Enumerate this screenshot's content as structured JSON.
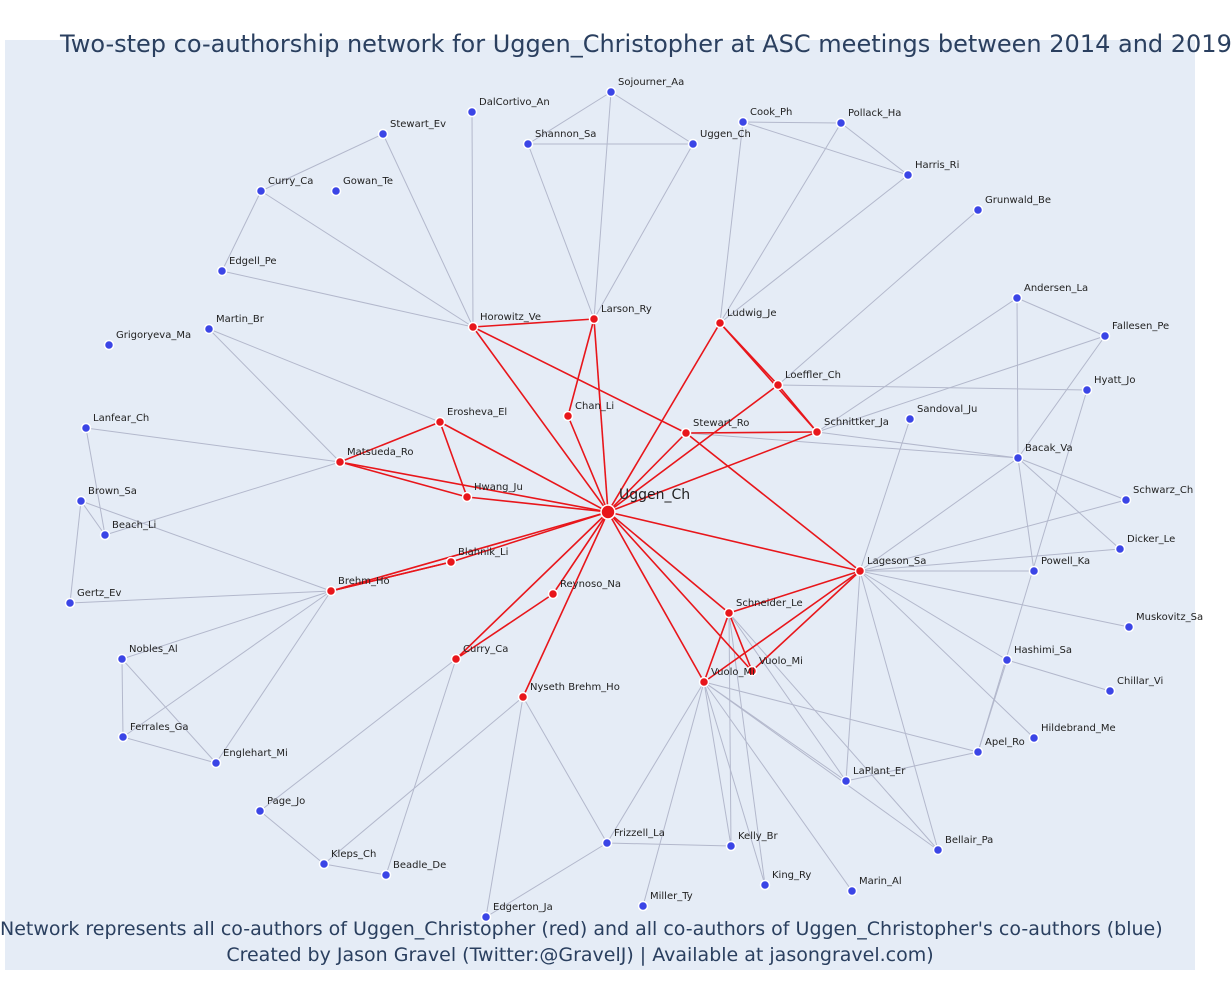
{
  "title": "Two-step co-authorship network for Uggen_Christopher at ASC meetings between 2014 and 2019",
  "footer": {
    "line1": "Network represents all co-authors of Uggen_Christopher (red) and all co-authors of Uggen_Christopher's co-authors (blue)",
    "line2": "Created by Jason Gravel (Twitter:@GravelJ) | Available at jasongravel.com)"
  },
  "colors": {
    "red": "#e8161b",
    "blue": "#3b45e6",
    "edge_blue": "#b3b8cc",
    "edge_red": "#e8161b",
    "background": "#e5ecf6"
  },
  "nodes": [
    {
      "label": "Uggen_Ch",
      "group": "center"
    },
    {
      "label": "Horowitz_Ve",
      "group": "red"
    },
    {
      "label": "Larson_Ry",
      "group": "red"
    },
    {
      "label": "Ludwig_Je",
      "group": "red"
    },
    {
      "label": "Loeffler_Ch",
      "group": "red"
    },
    {
      "label": "Chan_Li",
      "group": "red"
    },
    {
      "label": "Stewart_Ro",
      "group": "red"
    },
    {
      "label": "Schnittker_Ja",
      "group": "red"
    },
    {
      "label": "Erosheva_El",
      "group": "red"
    },
    {
      "label": "Matsueda_Ro",
      "group": "red"
    },
    {
      "label": "Hwang_Ju",
      "group": "red"
    },
    {
      "label": "Blahnik_Li",
      "group": "red"
    },
    {
      "label": "Brehm_Ho",
      "group": "red"
    },
    {
      "label": "Reynoso_Na",
      "group": "red"
    },
    {
      "label": "Curry_Ca",
      "group": "red"
    },
    {
      "label": "Nyseth Brehm_Ho",
      "group": "red"
    },
    {
      "label": "Lageson_Sa",
      "group": "red"
    },
    {
      "label": "Schneider_Le",
      "group": "red"
    },
    {
      "label": "Vuolo_Mi",
      "group": "red"
    },
    {
      "label": "Vuolo_Mi",
      "group": "red"
    },
    {
      "label": "Sojourner_Aa",
      "group": "blue"
    },
    {
      "label": "DalCortivo_An",
      "group": "blue"
    },
    {
      "label": "Shannon_Sa",
      "group": "blue"
    },
    {
      "label": "Uggen_Ch",
      "group": "blue"
    },
    {
      "label": "Cook_Ph",
      "group": "blue"
    },
    {
      "label": "Pollack_Ha",
      "group": "blue"
    },
    {
      "label": "Harris_Ri",
      "group": "blue"
    },
    {
      "label": "Stewart_Ev",
      "group": "blue"
    },
    {
      "label": "Curry_Ca",
      "group": "blue"
    },
    {
      "label": "Gowan_Te",
      "group": "blue"
    },
    {
      "label": "Grunwald_Be",
      "group": "blue"
    },
    {
      "label": "Edgell_Pe",
      "group": "blue"
    },
    {
      "label": "Martin_Br",
      "group": "blue"
    },
    {
      "label": "Grigoryeva_Ma",
      "group": "blue"
    },
    {
      "label": "Andersen_La",
      "group": "blue"
    },
    {
      "label": "Fallesen_Pe",
      "group": "blue"
    },
    {
      "label": "Hyatt_Jo",
      "group": "blue"
    },
    {
      "label": "Sandoval_Ju",
      "group": "blue"
    },
    {
      "label": "Lanfear_Ch",
      "group": "blue"
    },
    {
      "label": "Bacak_Va",
      "group": "blue"
    },
    {
      "label": "Brown_Sa",
      "group": "blue"
    },
    {
      "label": "Schwarz_Ch",
      "group": "blue"
    },
    {
      "label": "Beach_Li",
      "group": "blue"
    },
    {
      "label": "Dicker_Le",
      "group": "blue"
    },
    {
      "label": "Powell_Ka",
      "group": "blue"
    },
    {
      "label": "Gertz_Ev",
      "group": "blue"
    },
    {
      "label": "Muskovitz_Sa",
      "group": "blue"
    },
    {
      "label": "Nobles_Al",
      "group": "blue"
    },
    {
      "label": "Hashimi_Sa",
      "group": "blue"
    },
    {
      "label": "Chillar_Vi",
      "group": "blue"
    },
    {
      "label": "Ferrales_Ga",
      "group": "blue"
    },
    {
      "label": "Hildebrand_Me",
      "group": "blue"
    },
    {
      "label": "Englehart_Mi",
      "group": "blue"
    },
    {
      "label": "Apel_Ro",
      "group": "blue"
    },
    {
      "label": "LaPlant_Er",
      "group": "blue"
    },
    {
      "label": "Page_Jo",
      "group": "blue"
    },
    {
      "label": "Frizzell_La",
      "group": "blue"
    },
    {
      "label": "Kelly_Br",
      "group": "blue"
    },
    {
      "label": "Bellair_Pa",
      "group": "blue"
    },
    {
      "label": "Kleps_Ch",
      "group": "blue"
    },
    {
      "label": "Beadle_De",
      "group": "blue"
    },
    {
      "label": "King_Ry",
      "group": "blue"
    },
    {
      "label": "Marin_Al",
      "group": "blue"
    },
    {
      "label": "Miller_Ty",
      "group": "blue"
    },
    {
      "label": "Edgerton_Ja",
      "group": "blue"
    }
  ]
}
